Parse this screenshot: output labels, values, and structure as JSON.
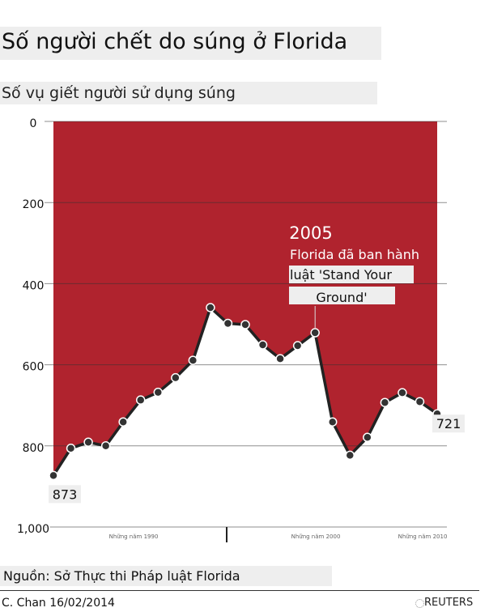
{
  "header": {
    "title": "Số người chết do súng ở Florida",
    "subtitle": "Số vụ giết người sử dụng súng"
  },
  "footer": {
    "source": "Nguồn: Sở Thực thi Pháp luật Florida",
    "credit": "C. Chan 16/02/2014",
    "brand": "REUTERS"
  },
  "colors": {
    "fill": "#b0232e",
    "line": "#222222",
    "point_fill": "#333333",
    "point_stroke": "#ffffff"
  },
  "chart_data": {
    "type": "area",
    "title": "Số vụ giết người sử dụng súng",
    "y_axis": {
      "inverted": true,
      "ylim": [
        0,
        1000
      ],
      "ticks": [
        0,
        200,
        400,
        600,
        800,
        1000
      ],
      "tick_labels": [
        "0",
        "200",
        "400",
        "600",
        "800",
        "1,000"
      ],
      "grid": true
    },
    "x_axis": {
      "labels": [
        "Những năm 1990",
        "Những năm 2000",
        "Những năm 2010"
      ]
    },
    "series": [
      {
        "values": [
          873,
          806,
          791,
          800,
          741,
          687,
          668,
          632,
          589,
          459,
          498,
          501,
          551,
          585,
          553,
          521,
          741,
          823,
          779,
          693,
          669,
          691,
          721
        ]
      }
    ],
    "data_labels": [
      {
        "index": 0,
        "text": "873"
      },
      {
        "index": 22,
        "text": "721"
      }
    ],
    "annotation": {
      "index": 15,
      "year": "2005",
      "lines": [
        "Florida đã ban hành",
        "luật 'Stand Your",
        "Ground'"
      ]
    }
  }
}
